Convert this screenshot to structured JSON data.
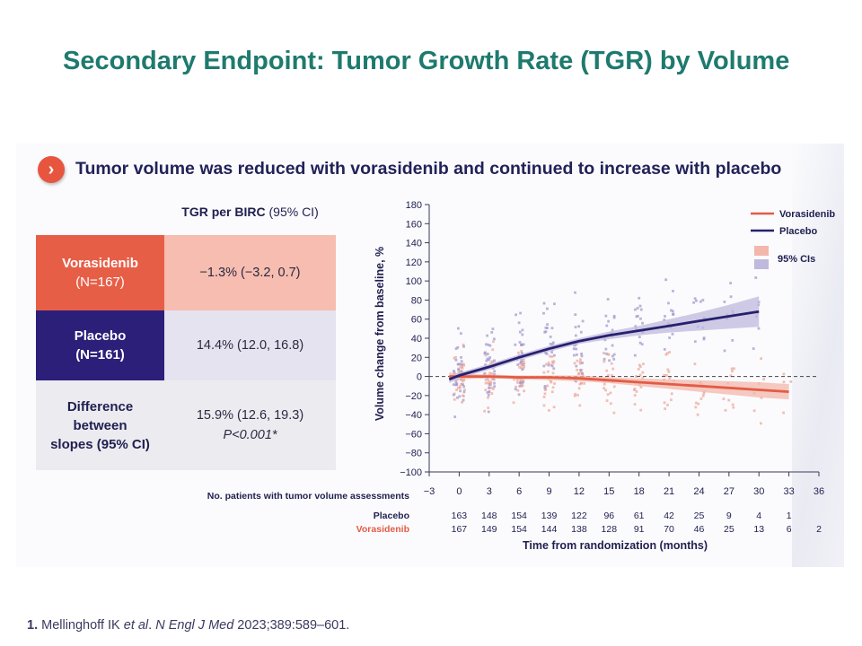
{
  "slide_title": "Secondary Endpoint: Tumor Growth Rate (TGR) by Volume",
  "headline": "Tumor volume was reduced with vorasidenib and continued to increase with placebo",
  "table": {
    "header_bold": "TGR per BIRC",
    "header_rest": " (95% CI)",
    "rows": [
      {
        "label_line1": "Vorasidenib",
        "label_line2": "(N=167)",
        "value": "−1.3% (−3.2, 0.7)"
      },
      {
        "label_line1": "Placebo",
        "label_line2": "(N=161)",
        "value": "14.4% (12.0, 16.8)"
      },
      {
        "label_line1": "Difference",
        "label_line2": "between",
        "label_line3": "slopes (95% CI)",
        "value": "15.9% (12.6, 19.3)",
        "value2": "P<0.001*"
      }
    ]
  },
  "chart_data": {
    "type": "line",
    "title": "",
    "xlabel": "Time from randomization (months)",
    "ylabel": "Volume change from baseline, %",
    "xlim": [
      -3,
      36
    ],
    "ylim": [
      -100,
      180
    ],
    "xticks": [
      -3,
      0,
      3,
      6,
      9,
      12,
      15,
      18,
      21,
      24,
      27,
      30,
      33,
      36
    ],
    "yticks": [
      -100,
      -80,
      -60,
      -40,
      -20,
      0,
      20,
      40,
      60,
      80,
      100,
      120,
      140,
      160,
      180
    ],
    "reference_line_y": 0,
    "series": [
      {
        "name": "Vorasidenib",
        "color": "#e25c45",
        "ci_color": "#f3b7ab",
        "x": [
          -1,
          0,
          3,
          6,
          9,
          12,
          15,
          18,
          21,
          24,
          27,
          30,
          33
        ],
        "y": [
          0,
          0,
          0,
          -1,
          -1,
          -2,
          -4,
          -6,
          -8,
          -10,
          -12,
          -14,
          -16
        ],
        "ci_low": [
          -4,
          -3,
          -2,
          -3,
          -4,
          -5,
          -7,
          -10,
          -13,
          -16,
          -19,
          -22,
          -24
        ],
        "ci_high": [
          4,
          3,
          2,
          1,
          1,
          1,
          -1,
          -2,
          -3,
          -4,
          -5,
          -6,
          -8
        ]
      },
      {
        "name": "Placebo",
        "color": "#27206e",
        "ci_color": "#bfb9dd",
        "x": [
          -1,
          0,
          3,
          6,
          9,
          12,
          15,
          18,
          21,
          24,
          27,
          30
        ],
        "y": [
          -3,
          1,
          10,
          20,
          29,
          37,
          43,
          48,
          53,
          58,
          63,
          68
        ],
        "ci_low": [
          -7,
          -2,
          7,
          17,
          26,
          34,
          39,
          43,
          46,
          48,
          50,
          52
        ],
        "ci_high": [
          1,
          4,
          13,
          23,
          32,
          40,
          47,
          53,
          60,
          67,
          75,
          84
        ]
      }
    ],
    "legend": {
      "items": [
        "Vorasidenib",
        "Placebo"
      ],
      "ci_label": "95% CIs",
      "position": "top-right"
    },
    "at_risk": {
      "title": "No. patients with tumor volume assessments",
      "timepoints": [
        0,
        3,
        6,
        9,
        12,
        15,
        18,
        21,
        24,
        27,
        30,
        33,
        36
      ],
      "placebo_label": "Placebo",
      "placebo": [
        "163",
        "148",
        "154",
        "139",
        "122",
        "96",
        "61",
        "42",
        "25",
        "9",
        "4",
        "1",
        ""
      ],
      "vorasidenib_label": "Vorasidenib",
      "vorasidenib": [
        "167",
        "149",
        "154",
        "144",
        "138",
        "128",
        "91",
        "70",
        "46",
        "25",
        "13",
        "6",
        "2"
      ]
    }
  },
  "footnote": {
    "number": "1.",
    "authors": " Mellinghoff IK ",
    "etal": "et al",
    "journal_pre": ". ",
    "journal": "N Engl J Med",
    "citation": " 2023;389:589–601."
  }
}
